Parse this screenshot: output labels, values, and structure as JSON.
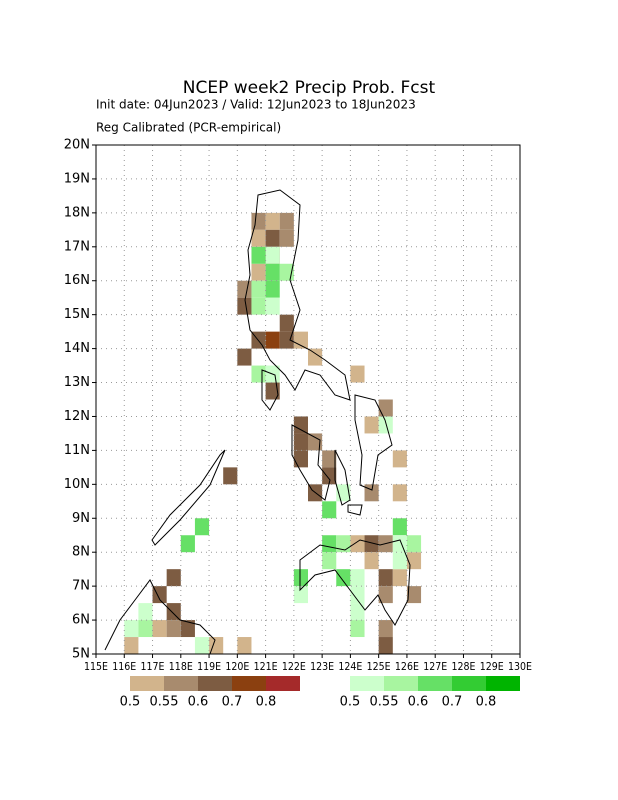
{
  "chart_data": {
    "type": "gridmap",
    "title": "NCEP week2 Precip Prob. Fcst",
    "subtitle": "Init date: 04Jun2023 / Valid: 12Jun2023 to 18Jun2023",
    "subtitle2": "Reg Calibrated (PCR-empirical)",
    "xlim": [
      115,
      130
    ],
    "ylim": [
      5,
      20
    ],
    "xticks": [
      {
        "value": 115,
        "label": "115E"
      },
      {
        "value": 116,
        "label": "116E"
      },
      {
        "value": 117,
        "label": "117E"
      },
      {
        "value": 118,
        "label": "118E"
      },
      {
        "value": 119,
        "label": "119E"
      },
      {
        "value": 120,
        "label": "120E"
      },
      {
        "value": 121,
        "label": "121E"
      },
      {
        "value": 122,
        "label": "122E"
      },
      {
        "value": 123,
        "label": "123E"
      },
      {
        "value": 124,
        "label": "124E"
      },
      {
        "value": 125,
        "label": "125E"
      },
      {
        "value": 126,
        "label": "126E"
      },
      {
        "value": 127,
        "label": "127E"
      },
      {
        "value": 128,
        "label": "128E"
      },
      {
        "value": 129,
        "label": "129E"
      },
      {
        "value": 130,
        "label": "130E"
      }
    ],
    "yticks": [
      {
        "value": 5,
        "label": "5N"
      },
      {
        "value": 6,
        "label": "6N"
      },
      {
        "value": 7,
        "label": "7N"
      },
      {
        "value": 8,
        "label": "8N"
      },
      {
        "value": 9,
        "label": "9N"
      },
      {
        "value": 10,
        "label": "10N"
      },
      {
        "value": 11,
        "label": "11N"
      },
      {
        "value": 12,
        "label": "12N"
      },
      {
        "value": 13,
        "label": "13N"
      },
      {
        "value": 14,
        "label": "14N"
      },
      {
        "value": 15,
        "label": "15N"
      },
      {
        "value": 16,
        "label": "16N"
      },
      {
        "value": 17,
        "label": "17N"
      },
      {
        "value": 18,
        "label": "18N"
      },
      {
        "value": 19,
        "label": "19N"
      },
      {
        "value": 20,
        "label": "20N"
      }
    ],
    "grid": true,
    "series": [
      {
        "levels": [
          0.5,
          0.55,
          0.6,
          0.7,
          0.8
        ],
        "colors": [
          "#d2b48c",
          "#a88b6e",
          "#7d5c42",
          "#8b4010",
          "#a52a2a"
        ],
        "lon": [
          120.75,
          121.25,
          121.75,
          120.75,
          121.25,
          121.75,
          121.25,
          120.75,
          120.25,
          120.25,
          121.75,
          121.25,
          121.75,
          120.75,
          122.25,
          120.25,
          121.25,
          122.75,
          124.25,
          125.25,
          124.75,
          122.25,
          122.25,
          122.75,
          122.25,
          123.25,
          123.25,
          122.75,
          124.75,
          125.75,
          125.75,
          119.75,
          124.75,
          125.25,
          124.25,
          125.25,
          125.25,
          125.75,
          126.25,
          126.25,
          125.25,
          125.25,
          124.75,
          117.75,
          117.25,
          117.75,
          117.25,
          117.75,
          118.25,
          116.25,
          119.25,
          120.25
        ],
        "lat": [
          17.75,
          17.75,
          17.75,
          17.25,
          17.25,
          17.25,
          16.75,
          16.25,
          15.75,
          15.25,
          14.75,
          14.25,
          14.25,
          14.25,
          14.25,
          13.75,
          12.75,
          13.75,
          13.25,
          12.25,
          11.75,
          11.75,
          11.25,
          11.25,
          10.75,
          10.75,
          10.25,
          9.75,
          9.75,
          10.75,
          9.75,
          10.25,
          8.25,
          8.25,
          8.25,
          7.25,
          6.75,
          7.25,
          7.75,
          6.75,
          5.75,
          5.25,
          7.75,
          7.25,
          6.75,
          6.25,
          5.75,
          5.75,
          5.75,
          5.25,
          5.25,
          5.25
        ],
        "prob": [
          0.55,
          0.5,
          0.55,
          0.5,
          0.6,
          0.55,
          0.55,
          0.5,
          0.55,
          0.6,
          0.6,
          0.7,
          0.6,
          0.6,
          0.5,
          0.6,
          0.6,
          0.5,
          0.5,
          0.55,
          0.5,
          0.6,
          0.6,
          0.55,
          0.6,
          0.55,
          0.6,
          0.6,
          0.55,
          0.5,
          0.5,
          0.6,
          0.6,
          0.55,
          0.5,
          0.6,
          0.55,
          0.5,
          0.5,
          0.55,
          0.55,
          0.6,
          0.5,
          0.6,
          0.6,
          0.6,
          0.5,
          0.55,
          0.6,
          0.5,
          0.5,
          0.5
        ]
      },
      {
        "levels": [
          0.5,
          0.55,
          0.6,
          0.7,
          0.8
        ],
        "colors": [
          "#ccffcc",
          "#a8f5a0",
          "#66e066",
          "#33cc33",
          "#00b400"
        ],
        "lon": [
          121.25,
          120.75,
          121.75,
          121.25,
          120.75,
          121.25,
          120.75,
          121.25,
          120.75,
          121.25,
          125.25,
          123.25,
          123.75,
          122.25,
          122.25,
          123.25,
          123.75,
          123.25,
          123.75,
          124.25,
          124.25,
          124.25,
          124.25,
          125.75,
          125.75,
          126.25,
          125.75,
          118.75,
          118.25,
          116.75,
          116.25,
          116.75,
          118.75
        ],
        "lat": [
          16.75,
          16.75,
          16.25,
          16.25,
          15.75,
          15.75,
          15.25,
          15.25,
          13.25,
          13.25,
          11.75,
          9.25,
          9.75,
          7.25,
          6.75,
          8.25,
          8.25,
          7.75,
          7.25,
          7.25,
          6.75,
          6.25,
          5.75,
          8.75,
          8.25,
          8.25,
          7.75,
          8.75,
          8.25,
          6.25,
          5.75,
          5.75,
          5.25
        ],
        "prob": [
          0.5,
          0.6,
          0.55,
          0.6,
          0.55,
          0.6,
          0.55,
          0.5,
          0.55,
          0.5,
          0.5,
          0.6,
          0.5,
          0.6,
          0.5,
          0.6,
          0.55,
          0.55,
          0.6,
          0.5,
          0.5,
          0.5,
          0.55,
          0.6,
          0.5,
          0.55,
          0.5,
          0.6,
          0.6,
          0.5,
          0.5,
          0.55,
          0.5
        ]
      }
    ]
  }
}
